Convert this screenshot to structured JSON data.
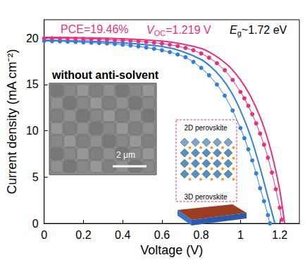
{
  "chart_data": {
    "type": "line",
    "x_label": "Voltage (V)",
    "y_label": "Current density (mA cm⁻²)",
    "xlim": [
      0,
      1.3
    ],
    "xticks": [
      0,
      0.2,
      0.4,
      0.6,
      0.8,
      1,
      1.2
    ],
    "ylim": [
      0,
      22
    ],
    "yticks": [
      0,
      5,
      10,
      15,
      20
    ],
    "grid": false,
    "series": [
      {
        "color": "#2f7fe0",
        "marker": "circle",
        "line_style": "solid",
        "x": [
          0,
          0.04,
          0.08,
          0.12,
          0.16,
          0.2,
          0.24,
          0.28,
          0.32,
          0.36,
          0.4,
          0.44,
          0.48,
          0.52,
          0.56,
          0.6,
          0.64,
          0.68,
          0.72,
          0.76,
          0.8,
          0.84,
          0.88,
          0.92,
          0.96,
          1.0,
          1.02,
          1.04,
          1.06,
          1.08,
          1.1,
          1.12,
          1.14,
          1.15
        ],
        "values": [
          19.7,
          19.68,
          19.66,
          19.63,
          19.6,
          19.56,
          19.52,
          19.48,
          19.44,
          19.38,
          19.3,
          19.22,
          19.12,
          19.0,
          18.86,
          18.7,
          18.5,
          18.25,
          17.95,
          17.45,
          16.8,
          16.0,
          15.0,
          13.8,
          12.2,
          10.3,
          9.2,
          8.0,
          6.8,
          5.4,
          3.8,
          2.4,
          0.9,
          0
        ]
      },
      {
        "color": "#2f7fe0",
        "marker": "none",
        "line_style": "solid",
        "x": [
          0,
          0.2,
          0.4,
          0.6,
          0.7,
          0.8,
          0.85,
          0.9,
          0.95,
          1.0,
          1.05,
          1.1,
          1.15,
          1.175
        ],
        "values": [
          19.8,
          19.7,
          19.5,
          19.1,
          18.6,
          17.7,
          16.9,
          15.8,
          14.3,
          12.2,
          9.5,
          6.0,
          2.0,
          0
        ]
      },
      {
        "color": "#e6317f",
        "marker": "circle",
        "line_style": "solid",
        "x": [
          0,
          0.04,
          0.08,
          0.12,
          0.16,
          0.2,
          0.24,
          0.28,
          0.32,
          0.36,
          0.4,
          0.44,
          0.48,
          0.52,
          0.56,
          0.6,
          0.64,
          0.68,
          0.72,
          0.76,
          0.8,
          0.84,
          0.88,
          0.92,
          0.96,
          1.0,
          1.02,
          1.04,
          1.06,
          1.08,
          1.1,
          1.12,
          1.14,
          1.16,
          1.18,
          1.2,
          1.21
        ],
        "values": [
          20.0,
          20.0,
          19.98,
          19.96,
          19.94,
          19.92,
          19.9,
          19.87,
          19.84,
          19.8,
          19.76,
          19.72,
          19.66,
          19.6,
          19.52,
          19.42,
          19.3,
          19.15,
          18.95,
          18.7,
          18.35,
          17.9,
          17.3,
          16.55,
          15.5,
          14.2,
          13.5,
          12.7,
          11.8,
          10.8,
          9.7,
          8.5,
          7.1,
          5.5,
          3.7,
          1.7,
          0.4
        ]
      },
      {
        "color": "#e6317f",
        "marker": "none",
        "line_style": "solid",
        "x": [
          0,
          0.2,
          0.4,
          0.6,
          0.7,
          0.8,
          0.85,
          0.9,
          0.95,
          1.0,
          1.05,
          1.1,
          1.14,
          1.17,
          1.2,
          1.225
        ],
        "values": [
          20.1,
          20.05,
          19.95,
          19.7,
          19.4,
          18.9,
          18.4,
          17.7,
          16.8,
          15.5,
          13.8,
          11.5,
          9.0,
          6.6,
          3.6,
          0
        ]
      }
    ],
    "annotations": [
      {
        "segments": [
          {
            "text": "PCE=19.46%"
          }
        ],
        "color": "#e6317f"
      },
      {
        "segments": [
          {
            "text": "V",
            "style": "italic"
          },
          {
            "text": "OC",
            "style": "sub"
          },
          {
            "text": "=1.219 V"
          }
        ],
        "color": "#e6317f"
      },
      {
        "segments": [
          {
            "text": "E",
            "style": "italic"
          },
          {
            "text": "g",
            "style": "sub"
          },
          {
            "text": "~1.72 eV"
          }
        ],
        "color": "#000000"
      },
      {
        "segments": [
          {
            "text": "without anti-solvent",
            "style": "bold"
          }
        ],
        "color": "#000000"
      },
      {
        "segments": [
          {
            "text": "2 μm"
          }
        ],
        "color": "#ffffff"
      },
      {
        "segments": [
          {
            "text": "2D perovskite"
          }
        ],
        "color": "#000000"
      },
      {
        "segments": [
          {
            "text": "3D perovskite"
          }
        ],
        "color": "#000000"
      }
    ]
  }
}
